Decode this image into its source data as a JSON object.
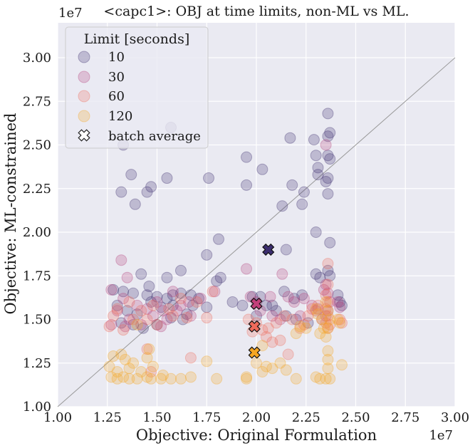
{
  "chart_data": {
    "type": "scatter",
    "title": "<capc1>: OBJ at time limits, non-ML vs ML.",
    "xlabel": "Objective: Original Formulation",
    "ylabel": "Objective: ML-constrained",
    "x_offset_label": "1e7",
    "y_offset_label": "1e7",
    "xlim": [
      1.0,
      3.0
    ],
    "ylim": [
      1.0,
      3.2
    ],
    "x_ticks": [
      "1.00",
      "1.25",
      "1.50",
      "1.75",
      "2.00",
      "2.25",
      "2.50",
      "2.75",
      "3.00"
    ],
    "y_ticks": [
      "1.00",
      "1.25",
      "1.50",
      "1.75",
      "2.00",
      "2.25",
      "2.50",
      "2.75",
      "3.00"
    ],
    "x_tick_values": [
      1.0,
      1.25,
      1.5,
      1.75,
      2.0,
      2.25,
      2.5,
      2.75,
      3.0
    ],
    "y_tick_values": [
      1.0,
      1.25,
      1.5,
      1.75,
      2.0,
      2.25,
      2.5,
      2.75,
      3.0
    ],
    "diagonal": [
      [
        1.0,
        1.0
      ],
      [
        3.0,
        3.0
      ]
    ],
    "legend": {
      "title": "Limit [seconds]",
      "position": "top-left",
      "entries": [
        "10",
        "30",
        "60",
        "120",
        "batch average"
      ]
    },
    "series": [
      {
        "name": "10",
        "color": "#3b2d6e",
        "points": [
          [
            1.33,
            2.5
          ],
          [
            1.32,
            2.23
          ],
          [
            1.37,
            2.33
          ],
          [
            1.39,
            2.16
          ],
          [
            1.45,
            2.23
          ],
          [
            1.47,
            2.26
          ],
          [
            1.55,
            2.31
          ],
          [
            1.57,
            2.6
          ],
          [
            1.76,
            2.31
          ],
          [
            1.95,
            2.43
          ],
          [
            2.03,
            2.36
          ],
          [
            1.95,
            2.27
          ],
          [
            2.17,
            2.54
          ],
          [
            2.18,
            2.27
          ],
          [
            2.13,
            2.15
          ],
          [
            2.24,
            2.23
          ],
          [
            2.23,
            2.16
          ],
          [
            2.29,
            2.53
          ],
          [
            2.3,
            2.44
          ],
          [
            2.31,
            2.37
          ],
          [
            2.31,
            2.33
          ],
          [
            2.36,
            2.68
          ],
          [
            2.36,
            2.55
          ],
          [
            2.37,
            2.57
          ],
          [
            2.36,
            2.44
          ],
          [
            2.37,
            2.42
          ],
          [
            2.36,
            2.31
          ],
          [
            2.36,
            2.22
          ],
          [
            2.35,
            2.29
          ],
          [
            2.37,
            1.94
          ],
          [
            2.3,
            2.0
          ],
          [
            1.81,
            1.96
          ],
          [
            1.75,
            1.87
          ],
          [
            2.15,
            1.9
          ],
          [
            1.82,
            1.74
          ],
          [
            1.8,
            1.72
          ],
          [
            1.62,
            1.78
          ],
          [
            1.55,
            1.74
          ],
          [
            1.42,
            1.76
          ],
          [
            1.46,
            1.69
          ],
          [
            1.28,
            1.67
          ],
          [
            1.33,
            1.66
          ],
          [
            1.38,
            1.65
          ],
          [
            1.45,
            1.64
          ],
          [
            1.5,
            1.63
          ],
          [
            1.55,
            1.62
          ],
          [
            1.58,
            1.64
          ],
          [
            1.62,
            1.65
          ],
          [
            1.67,
            1.64
          ],
          [
            1.71,
            1.62
          ],
          [
            1.88,
            1.6
          ],
          [
            1.93,
            1.58
          ],
          [
            1.98,
            1.63
          ],
          [
            2.02,
            1.63
          ],
          [
            2.08,
            1.58
          ],
          [
            2.14,
            1.66
          ],
          [
            2.19,
            1.62
          ],
          [
            2.23,
            1.64
          ],
          [
            2.3,
            1.76
          ],
          [
            2.32,
            1.74
          ],
          [
            2.36,
            1.78
          ],
          [
            2.37,
            1.75
          ],
          [
            2.41,
            1.64
          ],
          [
            2.42,
            1.6
          ],
          [
            2.43,
            1.58
          ],
          [
            1.3,
            1.58
          ],
          [
            1.35,
            1.55
          ],
          [
            1.4,
            1.53
          ],
          [
            1.47,
            1.6
          ],
          [
            1.52,
            1.57
          ],
          [
            1.58,
            1.58
          ],
          [
            1.65,
            1.53
          ],
          [
            1.68,
            1.58
          ],
          [
            1.75,
            1.57
          ],
          [
            2.0,
            1.52
          ],
          [
            2.05,
            1.58
          ],
          [
            2.1,
            1.55
          ],
          [
            2.15,
            1.52
          ],
          [
            2.2,
            1.5
          ],
          [
            2.26,
            1.48
          ],
          [
            1.32,
            1.48
          ],
          [
            1.38,
            1.47
          ],
          [
            1.43,
            1.45
          ],
          [
            1.5,
            1.47
          ],
          [
            1.57,
            1.51
          ],
          [
            1.63,
            1.5
          ]
        ]
      },
      {
        "name": "30",
        "color": "#b5417a",
        "points": [
          [
            2.35,
            2.5
          ],
          [
            1.32,
            1.84
          ],
          [
            1.35,
            1.74
          ],
          [
            1.27,
            1.67
          ],
          [
            1.33,
            1.62
          ],
          [
            1.4,
            1.58
          ],
          [
            1.45,
            1.56
          ],
          [
            1.5,
            1.6
          ],
          [
            1.53,
            1.55
          ],
          [
            1.58,
            1.66
          ],
          [
            1.62,
            1.58
          ],
          [
            1.66,
            1.6
          ],
          [
            1.72,
            1.62
          ],
          [
            1.79,
            1.66
          ],
          [
            1.95,
            1.79
          ],
          [
            1.97,
            1.63
          ],
          [
            2.0,
            1.6
          ],
          [
            2.07,
            1.63
          ],
          [
            2.13,
            1.76
          ],
          [
            2.16,
            1.63
          ],
          [
            2.19,
            1.6
          ],
          [
            2.24,
            1.62
          ],
          [
            2.28,
            1.58
          ],
          [
            2.31,
            1.56
          ],
          [
            2.34,
            1.67
          ],
          [
            2.35,
            1.7
          ],
          [
            2.36,
            1.65
          ],
          [
            2.37,
            1.6
          ],
          [
            2.36,
            1.55
          ],
          [
            2.35,
            1.52
          ],
          [
            2.41,
            1.6
          ],
          [
            2.42,
            1.57
          ],
          [
            1.3,
            1.55
          ],
          [
            1.36,
            1.5
          ],
          [
            1.42,
            1.47
          ],
          [
            1.48,
            1.52
          ],
          [
            1.55,
            1.5
          ],
          [
            1.6,
            1.55
          ],
          [
            1.67,
            1.52
          ],
          [
            2.02,
            1.55
          ],
          [
            2.08,
            1.52
          ],
          [
            2.12,
            1.5
          ],
          [
            2.22,
            1.52
          ],
          [
            2.3,
            1.55
          ],
          [
            2.33,
            1.5
          ],
          [
            1.27,
            1.47
          ],
          [
            1.34,
            1.46
          ],
          [
            1.52,
            1.46
          ]
        ]
      },
      {
        "name": "60",
        "color": "#ef6a5a",
        "points": [
          [
            2.36,
            1.82
          ],
          [
            2.36,
            1.7
          ],
          [
            2.35,
            1.64
          ],
          [
            2.36,
            1.6
          ],
          [
            2.35,
            1.56
          ],
          [
            2.36,
            1.52
          ],
          [
            2.35,
            1.48
          ],
          [
            2.36,
            1.45
          ],
          [
            2.37,
            1.47
          ],
          [
            2.31,
            1.58
          ],
          [
            2.28,
            1.56
          ],
          [
            2.26,
            1.52
          ],
          [
            2.24,
            1.47
          ],
          [
            2.22,
            1.45
          ],
          [
            2.18,
            1.5
          ],
          [
            2.14,
            1.52
          ],
          [
            2.1,
            1.48
          ],
          [
            2.06,
            1.45
          ],
          [
            2.03,
            1.44
          ],
          [
            2.0,
            1.48
          ],
          [
            1.98,
            1.43
          ],
          [
            1.96,
            1.5
          ],
          [
            2.12,
            1.38
          ],
          [
            2.05,
            1.4
          ],
          [
            1.75,
            1.51
          ],
          [
            1.65,
            1.51
          ],
          [
            1.58,
            1.52
          ],
          [
            1.5,
            1.47
          ],
          [
            1.45,
            1.5
          ],
          [
            1.38,
            1.5
          ],
          [
            1.33,
            1.44
          ],
          [
            1.28,
            1.52
          ],
          [
            1.26,
            1.46
          ],
          [
            1.3,
            1.56
          ],
          [
            1.36,
            1.6
          ],
          [
            1.42,
            1.55
          ],
          [
            1.48,
            1.58
          ],
          [
            1.56,
            1.56
          ],
          [
            1.62,
            1.62
          ],
          [
            1.7,
            1.6
          ],
          [
            1.78,
            1.66
          ],
          [
            2.16,
            1.3
          ],
          [
            2.42,
            1.5
          ],
          [
            2.43,
            1.48
          ],
          [
            1.67,
            1.28
          ],
          [
            1.47,
            1.2
          ],
          [
            1.45,
            1.33
          ],
          [
            2.08,
            1.37
          ]
        ]
      },
      {
        "name": "120",
        "color": "#f5a623",
        "points": [
          [
            1.26,
            1.23
          ],
          [
            1.28,
            1.29
          ],
          [
            1.32,
            1.3
          ],
          [
            1.34,
            1.27
          ],
          [
            1.36,
            1.22
          ],
          [
            1.38,
            1.25
          ],
          [
            1.42,
            1.2
          ],
          [
            1.45,
            1.28
          ],
          [
            1.46,
            1.33
          ],
          [
            1.48,
            1.23
          ],
          [
            1.3,
            1.2
          ],
          [
            1.27,
            1.17
          ],
          [
            1.3,
            1.16
          ],
          [
            1.33,
            1.17
          ],
          [
            1.36,
            1.16
          ],
          [
            1.4,
            1.16
          ],
          [
            1.45,
            1.17
          ],
          [
            1.47,
            1.16
          ],
          [
            1.52,
            1.16
          ],
          [
            1.57,
            1.16
          ],
          [
            1.62,
            1.16
          ],
          [
            1.67,
            1.17
          ],
          [
            1.75,
            1.26
          ],
          [
            1.8,
            1.16
          ],
          [
            1.95,
            1.17
          ],
          [
            1.95,
            1.16
          ],
          [
            2.0,
            1.25
          ],
          [
            2.03,
            1.2
          ],
          [
            2.05,
            1.23
          ],
          [
            2.08,
            1.22
          ],
          [
            2.12,
            1.25
          ],
          [
            2.15,
            1.21
          ],
          [
            2.2,
            1.16
          ],
          [
            2.3,
            1.17
          ],
          [
            2.32,
            1.16
          ],
          [
            2.36,
            1.32
          ],
          [
            2.36,
            1.27
          ],
          [
            2.36,
            1.22
          ],
          [
            2.35,
            1.16
          ],
          [
            2.37,
            1.16
          ],
          [
            2.3,
            1.56
          ],
          [
            2.31,
            1.53
          ],
          [
            2.33,
            1.5
          ],
          [
            2.34,
            1.45
          ],
          [
            2.32,
            1.42
          ],
          [
            2.35,
            1.4
          ],
          [
            2.36,
            1.55
          ],
          [
            2.35,
            1.6
          ],
          [
            2.37,
            1.5
          ],
          [
            2.36,
            1.45
          ],
          [
            2.22,
            1.46
          ],
          [
            2.25,
            1.45
          ],
          [
            2.2,
            1.42
          ],
          [
            2.43,
            1.24
          ],
          [
            2.42,
            1.48
          ],
          [
            2.41,
            1.5
          ],
          [
            2.03,
            1.35
          ],
          [
            1.4,
            1.47
          ],
          [
            1.53,
            1.18
          ]
        ]
      }
    ],
    "batch_averages": [
      {
        "name": "10",
        "x": 2.06,
        "y": 1.9,
        "color": "#3b2d6e"
      },
      {
        "name": "30",
        "x": 2.0,
        "y": 1.59,
        "color": "#c2407a"
      },
      {
        "name": "60",
        "x": 1.99,
        "y": 1.46,
        "color": "#ef6a5a"
      },
      {
        "name": "120",
        "x": 1.99,
        "y": 1.31,
        "color": "#f5a623"
      }
    ]
  }
}
